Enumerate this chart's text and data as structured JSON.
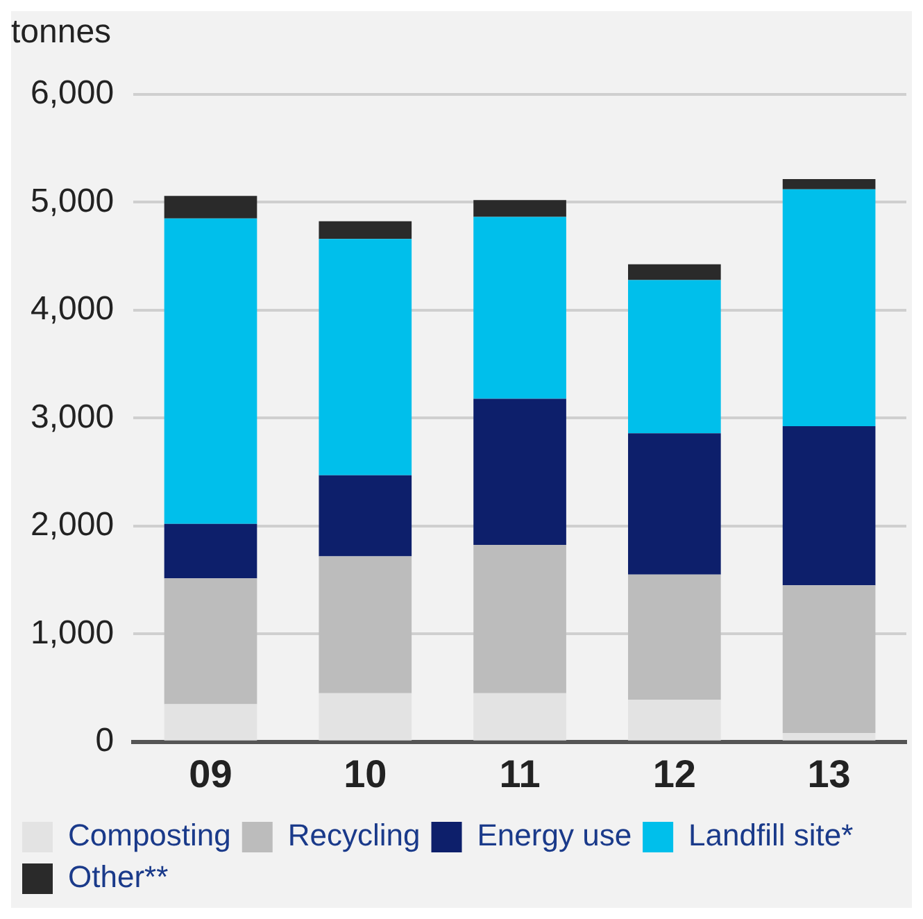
{
  "chart_data": {
    "type": "bar",
    "ylabel": "tonnes",
    "categories": [
      "09",
      "10",
      "11",
      "12",
      "13"
    ],
    "stacked": true,
    "series": [
      {
        "name": "Composting",
        "color": "#e3e3e3",
        "values": [
          350,
          450,
          450,
          390,
          80
        ]
      },
      {
        "name": "Recycling",
        "color": "#bcbcbc",
        "values": [
          1165,
          1270,
          1375,
          1160,
          1370
        ]
      },
      {
        "name": "Energy use",
        "color": "#0d1f6b",
        "values": [
          505,
          750,
          1355,
          1310,
          1475
        ]
      },
      {
        "name": "Landfill site*",
        "color": "#00bfeb",
        "values": [
          2830,
          2190,
          1685,
          1420,
          2195
        ]
      },
      {
        "name": "Other**",
        "color": "#2a2a2a",
        "values": [
          210,
          165,
          155,
          145,
          95
        ]
      }
    ],
    "ylim": [
      0,
      6000
    ],
    "yticks": [
      {
        "value": 0,
        "label": "0"
      },
      {
        "value": 1000,
        "label": "1,000"
      },
      {
        "value": 2000,
        "label": "2,000"
      },
      {
        "value": 3000,
        "label": "3,000"
      },
      {
        "value": 4000,
        "label": "4,000"
      },
      {
        "value": 5000,
        "label": "5,000"
      },
      {
        "value": 6000,
        "label": "6,000"
      }
    ],
    "grid": "y",
    "legend": "bottom"
  }
}
